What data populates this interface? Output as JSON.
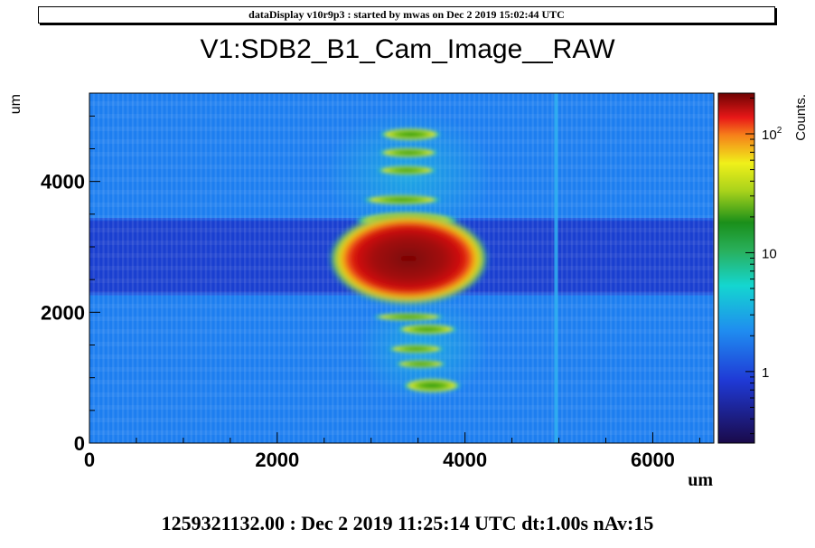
{
  "banner": "dataDisplay v10r9p3 : started by mwas on Dec  2 2019 15:02:44 UTC",
  "footer": "1259321132.00 : Dec  2 2019 11:25:14 UTC dt:1.00s nAv:15",
  "chart_data": {
    "type": "heatmap",
    "title": "V1:SDB2_B1_Cam_Image__RAW",
    "xlabel": "um",
    "ylabel": "um",
    "xlim": [
      0,
      6650
    ],
    "ylim": [
      0,
      5350
    ],
    "x_ticks": [
      {
        "value": 0,
        "label": "0"
      },
      {
        "value": 2000,
        "label": "2000"
      },
      {
        "value": 4000,
        "label": "4000"
      },
      {
        "value": 6000,
        "label": "6000"
      }
    ],
    "y_ticks": [
      {
        "value": 0,
        "label": "0"
      },
      {
        "value": 2000,
        "label": "2000"
      },
      {
        "value": 4000,
        "label": "4000"
      }
    ],
    "colorbar": {
      "title": "Counts.",
      "scale": "log",
      "range": [
        0.25,
        220
      ],
      "ticks": [
        {
          "value": 1,
          "label": "1",
          "exp": ""
        },
        {
          "value": 10,
          "label": "10",
          "exp": ""
        },
        {
          "value": 100,
          "label": "10",
          "exp": "2"
        }
      ]
    },
    "background_counts": 2,
    "dark_band": {
      "y_min": 2300,
      "y_max": 3400,
      "counts": 0.8
    },
    "vertical_line": {
      "x": 4970,
      "counts": 3
    },
    "main_spot": {
      "x": 3400,
      "y": 2820,
      "rx": 780,
      "ry": 650,
      "peak_counts": 220
    },
    "side_spots": [
      {
        "x": 3420,
        "y": 4720,
        "rx": 330,
        "ry": 95,
        "counts": 12
      },
      {
        "x": 3400,
        "y": 4440,
        "rx": 320,
        "ry": 75,
        "counts": 10
      },
      {
        "x": 3380,
        "y": 4170,
        "rx": 320,
        "ry": 70,
        "counts": 10
      },
      {
        "x": 3330,
        "y": 3720,
        "rx": 420,
        "ry": 75,
        "counts": 10
      },
      {
        "x": 3380,
        "y": 3400,
        "rx": 550,
        "ry": 130,
        "counts": 12
      },
      {
        "x": 3400,
        "y": 1930,
        "rx": 380,
        "ry": 60,
        "counts": 8
      },
      {
        "x": 3600,
        "y": 1740,
        "rx": 320,
        "ry": 80,
        "counts": 12
      },
      {
        "x": 3480,
        "y": 1440,
        "rx": 300,
        "ry": 65,
        "counts": 10
      },
      {
        "x": 3530,
        "y": 1210,
        "rx": 270,
        "ry": 60,
        "counts": 10
      },
      {
        "x": 3650,
        "y": 880,
        "rx": 310,
        "ry": 110,
        "counts": 15
      }
    ]
  }
}
